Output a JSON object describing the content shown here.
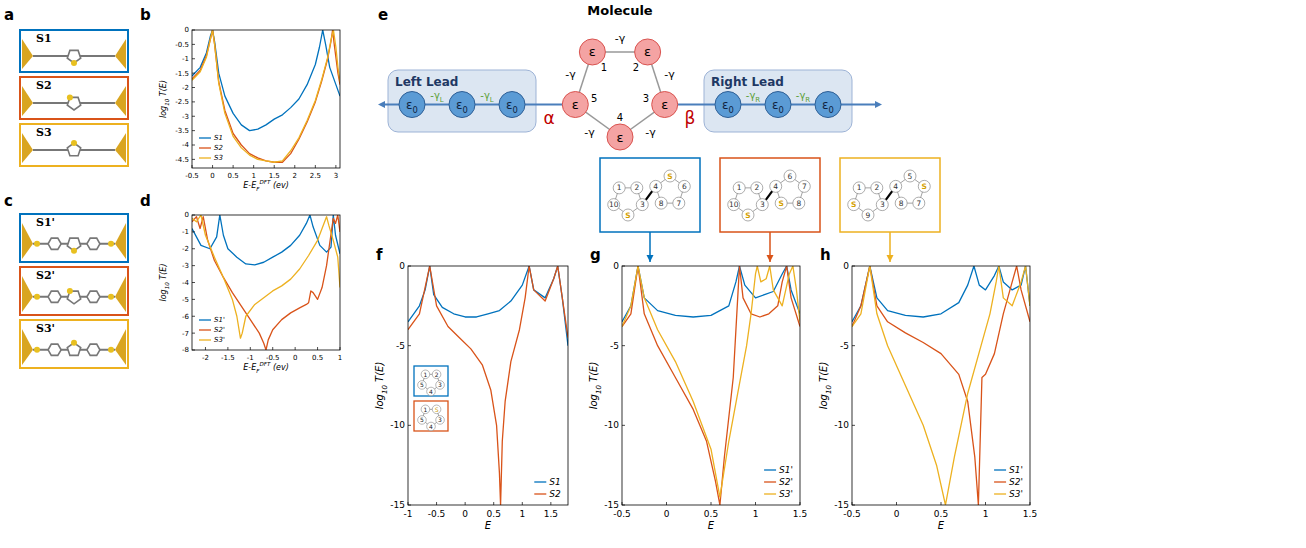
{
  "panel_labels": [
    "a",
    "b",
    "c",
    "d",
    "e",
    "f",
    "g",
    "h"
  ],
  "molecules_a": [
    "S1",
    "S2",
    "S3"
  ],
  "molecules_c": [
    "S1'",
    "S2'",
    "S3'"
  ],
  "model": {
    "title": "Molecule",
    "left_lead": "Left Lead",
    "right_lead": "Right Lead",
    "site": "ε",
    "hopping": "-γ",
    "site_numbers": [
      "1",
      "2",
      "3",
      "4",
      "5"
    ],
    "lead_site": {
      "base": "ε",
      "sub": "0"
    },
    "left_hopping": {
      "base": "-γ",
      "sub": "L"
    },
    "right_hopping": {
      "base": "-γ",
      "sub": "R"
    },
    "left_coupling": "α",
    "right_coupling": "β"
  },
  "structure_insets": [
    {
      "left": [
        "1",
        "2",
        "3",
        "S",
        "10"
      ],
      "right": [
        "4",
        "S",
        "6",
        "7",
        "8"
      ]
    },
    {
      "left": [
        "1",
        "2",
        "3",
        "S",
        "10"
      ],
      "right": [
        "4",
        "6",
        "7",
        "8",
        "S"
      ]
    },
    {
      "left": [
        "1",
        "2",
        "3",
        "9",
        "S"
      ],
      "right": [
        "4",
        "5",
        "S",
        "7",
        "8"
      ]
    }
  ],
  "f_inset": [
    [
      "1",
      "2",
      "3",
      "4",
      "5"
    ],
    [
      "1",
      "S",
      "3",
      "4",
      "5"
    ]
  ],
  "chart_data": [
    {
      "type": "line",
      "xlabel": {
        "base": "E-E",
        "sub": "F",
        "sup": "DFT",
        "tail": " (ev)"
      },
      "ylabel": {
        "base": "log",
        "sub": "10",
        "tail": " T(E)"
      },
      "xlim": [
        -0.5,
        3.1
      ],
      "ylim": [
        -4.8,
        0
      ],
      "xticks": [
        -0.5,
        0,
        0.5,
        1,
        1.5,
        2,
        2.5,
        3
      ],
      "yticks": [
        -4.5,
        -4,
        -3.5,
        -3,
        -2.5,
        -2,
        -1.5,
        -1,
        -0.5,
        0
      ],
      "legend": "lower left",
      "series": [
        {
          "name": "S1",
          "color": "#0072BD",
          "x": [
            -0.5,
            -0.3,
            -0.15,
            -0.05,
            0,
            0.05,
            0.15,
            0.3,
            0.5,
            0.7,
            0.9,
            1.1,
            1.3,
            1.5,
            1.7,
            1.9,
            2.1,
            2.3,
            2.5,
            2.6,
            2.68,
            2.75,
            2.85,
            3.0,
            3.1
          ],
          "values": [
            -1.6,
            -1.3,
            -0.8,
            -0.2,
            0,
            -0.4,
            -1.5,
            -2.3,
            -2.9,
            -3.3,
            -3.5,
            -3.45,
            -3.3,
            -3.1,
            -2.95,
            -2.7,
            -2.4,
            -1.9,
            -1.2,
            -0.6,
            0,
            -0.5,
            -1.3,
            -1.9,
            -2.3
          ]
        },
        {
          "name": "S2",
          "color": "#D95319",
          "x": [
            -0.5,
            -0.3,
            -0.15,
            -0.05,
            0,
            0.05,
            0.15,
            0.3,
            0.5,
            0.7,
            0.9,
            1.1,
            1.3,
            1.5,
            1.7,
            1.9,
            2.1,
            2.3,
            2.5,
            2.65,
            2.8,
            2.88,
            2.92,
            2.96,
            3.05,
            3.1
          ],
          "values": [
            -1.7,
            -1.4,
            -0.9,
            -0.3,
            0,
            -0.5,
            -1.8,
            -2.8,
            -3.6,
            -4.0,
            -4.3,
            -4.45,
            -4.55,
            -4.6,
            -4.6,
            -4.3,
            -3.8,
            -3.2,
            -2.5,
            -1.8,
            -1.0,
            -0.4,
            0,
            -0.5,
            -1.5,
            -1.9
          ]
        },
        {
          "name": "S3",
          "color": "#EDB120",
          "x": [
            -0.5,
            -0.3,
            -0.15,
            -0.05,
            0,
            0.05,
            0.15,
            0.3,
            0.5,
            0.7,
            0.9,
            1.1,
            1.3,
            1.5,
            1.7,
            1.9,
            2.1,
            2.3,
            2.5,
            2.65,
            2.8,
            2.88,
            2.94,
            3.0,
            3.05,
            3.1
          ],
          "values": [
            -1.75,
            -1.45,
            -0.95,
            -0.3,
            0,
            -0.5,
            -1.85,
            -2.9,
            -3.7,
            -4.1,
            -4.35,
            -4.5,
            -4.55,
            -4.6,
            -4.55,
            -4.2,
            -3.75,
            -3.15,
            -2.45,
            -1.75,
            -0.95,
            -0.35,
            0,
            -0.6,
            -1.3,
            -1.8
          ]
        }
      ]
    },
    {
      "type": "line",
      "xlabel": {
        "base": "E-E",
        "sub": "F",
        "sup": "DFT",
        "tail": " (ev)"
      },
      "ylabel": {
        "base": "log",
        "sub": "10",
        "tail": " T(E)"
      },
      "xlim": [
        -2.3,
        1
      ],
      "ylim": [
        -8,
        0
      ],
      "xticks": [
        -2,
        -1.5,
        -1,
        -0.5,
        0,
        0.5,
        1
      ],
      "yticks": [
        -8,
        -7,
        -6,
        -5,
        -4,
        -3,
        -2,
        -1,
        0
      ],
      "legend": "lower left",
      "series": [
        {
          "name": "S1'",
          "color": "#0072BD",
          "x": [
            -2.3,
            -2.1,
            -1.9,
            -1.75,
            -1.68,
            -1.6,
            -1.5,
            -1.3,
            -1.1,
            -0.9,
            -0.7,
            -0.5,
            -0.3,
            -0.1,
            0.1,
            0.25,
            0.33,
            0.4,
            0.55,
            0.7,
            0.8,
            0.85,
            0.9,
            1.0
          ],
          "values": [
            -0.8,
            -1.8,
            -2.0,
            -1.3,
            0,
            -1.2,
            -2.0,
            -2.5,
            -2.9,
            -2.95,
            -2.8,
            -2.5,
            -2.2,
            -1.8,
            -1.2,
            -0.5,
            0,
            -0.7,
            -1.8,
            -2.2,
            -1.9,
            0,
            -1.2,
            -2.3
          ]
        },
        {
          "name": "S2'",
          "color": "#D95319",
          "x": [
            -2.3,
            -2.2,
            -2.12,
            -2.05,
            -1.95,
            -1.8,
            -1.6,
            -1.4,
            -1.2,
            -1.0,
            -0.8,
            -0.7,
            -0.65,
            -0.6,
            -0.5,
            -0.3,
            -0.1,
            0.1,
            0.25,
            0.3,
            0.35,
            0.4,
            0.5,
            0.6,
            0.7,
            0.78,
            0.85,
            0.9,
            0.95,
            1.0
          ],
          "values": [
            -0.4,
            -0.1,
            -0.8,
            -0.1,
            -1.5,
            -2.7,
            -3.7,
            -4.6,
            -5.4,
            -6.2,
            -7.0,
            -7.6,
            -8,
            -7.4,
            -6.8,
            -6.2,
            -5.8,
            -5.5,
            -5.3,
            -5.2,
            -4.5,
            -4.6,
            -5.0,
            -4.3,
            -3.0,
            -1.5,
            -0.2,
            -0.5,
            0,
            -1.0
          ]
        },
        {
          "name": "S3'",
          "color": "#EDB120",
          "x": [
            -2.3,
            -2.2,
            -2.1,
            -2.0,
            -1.8,
            -1.6,
            -1.4,
            -1.3,
            -1.22,
            -1.18,
            -1.1,
            -0.9,
            -0.7,
            -0.5,
            -0.3,
            -0.1,
            0.1,
            0.3,
            0.5,
            0.6,
            0.7,
            0.75,
            0.85,
            0.95,
            1.0
          ],
          "values": [
            -0.2,
            -0.4,
            0,
            -1.2,
            -2.5,
            -3.7,
            -5.0,
            -6.0,
            -7.3,
            -7.0,
            -6.0,
            -5.3,
            -4.9,
            -4.5,
            -4.2,
            -3.8,
            -3.2,
            -2.4,
            -1.5,
            -0.8,
            -0.1,
            -0.6,
            -1.5,
            -2.5,
            -4.3
          ]
        }
      ]
    },
    {
      "type": "line",
      "xlabel": {
        "base": "E"
      },
      "ylabel": {
        "base": "log",
        "sub": "10",
        "tail": " T(E)"
      },
      "xlim": [
        -1,
        1.8
      ],
      "ylim": [
        -15,
        0
      ],
      "xticks": [
        -1,
        -0.5,
        0,
        0.5,
        1,
        1.5
      ],
      "yticks": [
        -15,
        -10,
        -5,
        0
      ],
      "legend": "lower right",
      "series": [
        {
          "name": "S1",
          "color": "#0072BD",
          "x": [
            -1,
            -0.8,
            -0.7,
            -0.62,
            -0.55,
            -0.4,
            -0.2,
            0,
            0.2,
            0.4,
            0.6,
            0.8,
            1.0,
            1.12,
            1.2,
            1.4,
            1.55,
            1.62,
            1.7,
            1.8
          ],
          "values": [
            -3.5,
            -2.5,
            -1.5,
            0,
            -1.8,
            -2.6,
            -3.0,
            -3.2,
            -3.2,
            -3.0,
            -2.8,
            -2.2,
            -1.2,
            0,
            -1.5,
            -2.0,
            -0.8,
            0,
            -2.0,
            -5.0
          ]
        },
        {
          "name": "S2",
          "color": "#D95319",
          "x": [
            -1,
            -0.8,
            -0.62,
            -0.5,
            -0.3,
            -0.1,
            0.1,
            0.3,
            0.45,
            0.55,
            0.6,
            0.62,
            0.65,
            0.7,
            0.8,
            0.95,
            1.05,
            1.12,
            1.2,
            1.4,
            1.55,
            1.62,
            1.7,
            1.8
          ],
          "values": [
            -4,
            -3,
            0,
            -2.5,
            -3.8,
            -4.5,
            -5.2,
            -6.2,
            -7.8,
            -10,
            -13,
            -15,
            -11,
            -8.5,
            -6,
            -4,
            -2,
            0,
            -1.5,
            -2.2,
            -0.8,
            0,
            -2,
            -4.5
          ]
        }
      ]
    },
    {
      "type": "line",
      "xlabel": {
        "base": "E"
      },
      "ylabel": {
        "base": "log",
        "sub": "10",
        "tail": " T(E)"
      },
      "xlim": [
        -0.5,
        1.5
      ],
      "ylim": [
        -15,
        0
      ],
      "xticks": [
        -0.5,
        0,
        0.5,
        1,
        1.5
      ],
      "yticks": [
        -15,
        -10,
        -5,
        0
      ],
      "legend": "lower right",
      "series": [
        {
          "name": "S1'",
          "color": "#0072BD",
          "x": [
            -0.5,
            -0.4,
            -0.32,
            -0.25,
            -0.1,
            0.1,
            0.3,
            0.5,
            0.7,
            0.78,
            0.82,
            0.88,
            1.0,
            1.2,
            1.3,
            1.35,
            1.4,
            1.5
          ],
          "values": [
            -3.5,
            -2.5,
            0,
            -2,
            -2.8,
            -3.1,
            -3.2,
            -3.1,
            -2.5,
            -1.0,
            0,
            -1.2,
            -2.0,
            -1.6,
            -0.5,
            0,
            -1.5,
            -3.0
          ]
        },
        {
          "name": "S2'",
          "color": "#D95319",
          "x": [
            -0.5,
            -0.4,
            -0.32,
            -0.25,
            -0.1,
            0.1,
            0.3,
            0.45,
            0.55,
            0.6,
            0.65,
            0.75,
            0.8,
            0.82,
            0.86,
            0.95,
            1.05,
            1.15,
            1.25,
            1.3,
            1.35,
            1.4,
            1.5
          ],
          "values": [
            -3.8,
            -3.0,
            0,
            -3,
            -5,
            -7,
            -9,
            -11,
            -13.5,
            -15,
            -12,
            -7,
            -2,
            0,
            -2,
            -3,
            -3.2,
            -3.0,
            -2.5,
            -1,
            0,
            -2,
            -3.8
          ]
        },
        {
          "name": "S3'",
          "color": "#EDB120",
          "x": [
            -0.5,
            -0.4,
            -0.32,
            -0.25,
            -0.1,
            0.1,
            0.3,
            0.5,
            0.6,
            0.7,
            0.8,
            0.9,
            0.95,
            1.0,
            1.02,
            1.06,
            1.12,
            1.16,
            1.2,
            1.3,
            1.38,
            1.42,
            1.46,
            1.5
          ],
          "values": [
            -3.8,
            -2.5,
            0,
            -2,
            -4,
            -6,
            -8.5,
            -11.5,
            -14.5,
            -11,
            -8,
            -5,
            -3,
            -0.5,
            0,
            -1,
            -0.8,
            0,
            -1.5,
            -2.5,
            -0.5,
            0,
            -1.5,
            -3.5
          ]
        }
      ]
    },
    {
      "type": "line",
      "xlabel": {
        "base": "E"
      },
      "ylabel": {
        "base": "log",
        "sub": "10",
        "tail": " T(E)"
      },
      "xlim": [
        -0.5,
        1.5
      ],
      "ylim": [
        -15,
        0
      ],
      "xticks": [
        -0.5,
        0,
        0.5,
        1,
        1.5
      ],
      "yticks": [
        -15,
        -10,
        -5,
        0
      ],
      "legend": "lower right",
      "series": [
        {
          "name": "S1'",
          "color": "#0072BD",
          "x": [
            -0.5,
            -0.4,
            -0.3,
            -0.22,
            -0.1,
            0.1,
            0.3,
            0.5,
            0.7,
            0.8,
            0.87,
            0.93,
            1.0,
            1.1,
            1.15,
            1.2,
            1.3,
            1.4,
            1.45,
            1.5
          ],
          "values": [
            -3.5,
            -2.5,
            0,
            -2,
            -2.8,
            -3.1,
            -3.2,
            -3.0,
            -2.3,
            -1.2,
            0,
            -1.2,
            -1.5,
            -0.6,
            0,
            -1,
            -1.5,
            -1.2,
            0,
            -2.5
          ]
        },
        {
          "name": "S2'",
          "color": "#D95319",
          "x": [
            -0.5,
            -0.4,
            -0.3,
            -0.22,
            -0.1,
            0.1,
            0.3,
            0.5,
            0.7,
            0.8,
            0.88,
            0.92,
            0.96,
            1.0,
            1.1,
            1.2,
            1.3,
            1.35,
            1.4,
            1.5
          ],
          "values": [
            -3.8,
            -2.5,
            0,
            -2.5,
            -3.5,
            -4.2,
            -4.8,
            -5.5,
            -6.8,
            -8.5,
            -12,
            -15,
            -7,
            -6.8,
            -5.5,
            -3.0,
            -1.0,
            0,
            -1.5,
            -3.5
          ]
        },
        {
          "name": "S3'",
          "color": "#EDB120",
          "x": [
            -0.5,
            -0.4,
            -0.3,
            -0.22,
            -0.1,
            0.1,
            0.3,
            0.45,
            0.55,
            0.65,
            0.8,
            0.95,
            1.05,
            1.12,
            1.15,
            1.2,
            1.3,
            1.4,
            1.45,
            1.5
          ],
          "values": [
            -3.8,
            -3,
            0,
            -3,
            -5,
            -7.5,
            -10,
            -12.5,
            -15,
            -12,
            -8,
            -5,
            -3,
            -1,
            0,
            -2,
            -2.5,
            -1,
            0,
            -2.5
          ]
        }
      ]
    }
  ]
}
